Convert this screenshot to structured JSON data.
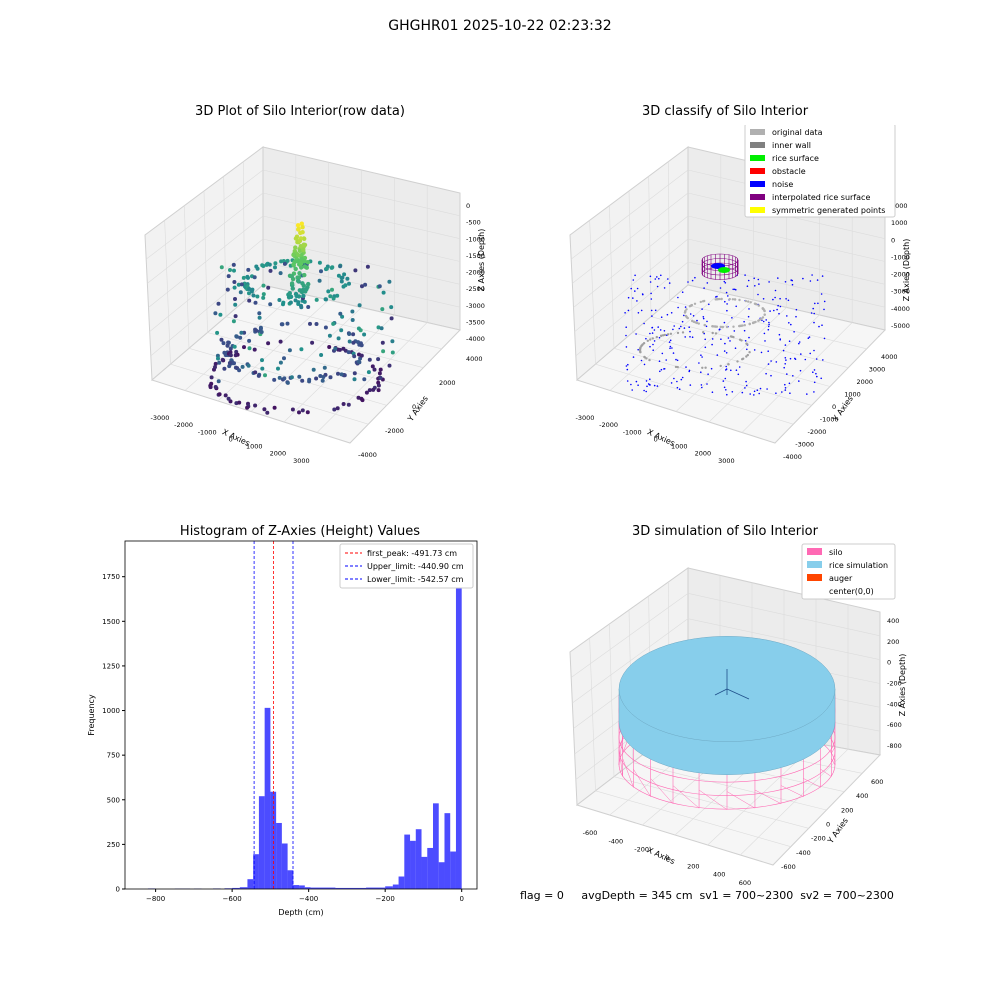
{
  "figure": {
    "suptitle": "GHGHR01 2025-10-22 02:23:32",
    "status_text": "flag = 0     avgDepth = 345 cm  sv1 = 700~2300  sv2 = 700~2300"
  },
  "panels": {
    "raw": {
      "title": "3D Plot of Silo Interior(row data)",
      "xlabel": "X Axies",
      "ylabel": "Y Axies",
      "zlabel": "Z Axies (Depth)",
      "xticks": [
        "-3000",
        "-2000",
        "-1000",
        "0",
        "1000",
        "2000",
        "3000",
        "4000"
      ],
      "yticks": [
        "-4000",
        "-2000",
        "0",
        "2000",
        "4000"
      ],
      "zticks": [
        "0",
        "-500",
        "-1000",
        "-1500",
        "-2000",
        "-2500",
        "-3000",
        "-3500",
        "-4000"
      ]
    },
    "classify": {
      "title": "3D classify of Silo Interior",
      "xlabel": "X Axies",
      "ylabel": "Y Axies",
      "zlabel": "Z Axies (Depth)",
      "xticks": [
        "-3000",
        "-2000",
        "-1000",
        "0",
        "1000",
        "2000",
        "3000",
        "4000"
      ],
      "yticks": [
        "-4000",
        "-3000",
        "-2000",
        "-1000",
        "0",
        "1000",
        "2000",
        "3000",
        "4000"
      ],
      "zticks": [
        "2000",
        "1000",
        "0",
        "-1000",
        "-2000",
        "-3000",
        "-4000",
        "-5000"
      ],
      "legend": [
        {
          "label": "original data",
          "color": "#b0b0b0"
        },
        {
          "label": "inner wall",
          "color": "#808080"
        },
        {
          "label": "rice surface",
          "color": "#00ee00"
        },
        {
          "label": "obstacle",
          "color": "#ff0000"
        },
        {
          "label": "noise",
          "color": "#0000ff"
        },
        {
          "label": "interpolated rice surface",
          "color": "#800080"
        },
        {
          "label": "symmetric generated points",
          "color": "#ffff00"
        }
      ]
    },
    "simulation": {
      "title": "3D simulation of Silo Interior",
      "xlabel": "X Axies",
      "ylabel": "Y Axies",
      "zlabel": "Z Axies (Depth)",
      "xticks": [
        "-600",
        "-400",
        "-200",
        "0",
        "200",
        "400",
        "600"
      ],
      "yticks": [
        "-600",
        "-400",
        "-200",
        "0",
        "200",
        "400",
        "600"
      ],
      "zticks": [
        "400",
        "200",
        "0",
        "-200",
        "-400",
        "-600",
        "-800"
      ],
      "legend": [
        {
          "label": "silo",
          "color": "#ff69b4"
        },
        {
          "label": "rice simulation",
          "color": "#87ceeb"
        },
        {
          "label": "auger",
          "color": "#ff4500"
        },
        {
          "label": "center(0,0)",
          "color": "#ffffff"
        }
      ]
    }
  },
  "chart_data": {
    "type": "bar",
    "title": "Histogram of Z-Axies (Height) Values",
    "xlabel": "Depth (cm)",
    "ylabel": "Frequency",
    "xlim": [
      -880,
      40
    ],
    "ylim": [
      0,
      1950
    ],
    "xticks": [
      -800,
      -600,
      -400,
      -200,
      0
    ],
    "yticks": [
      0,
      250,
      500,
      750,
      1000,
      1250,
      1500,
      1750
    ],
    "bar_color": "#0000ff",
    "bins": [
      [
        -820,
        -800,
        3
      ],
      [
        -750,
        -730,
        2
      ],
      [
        -730,
        -710,
        2
      ],
      [
        -700,
        -680,
        2
      ],
      [
        -650,
        -630,
        3
      ],
      [
        -620,
        -600,
        4
      ],
      [
        -600,
        -580,
        6
      ],
      [
        -580,
        -560,
        10
      ],
      [
        -560,
        -545,
        55
      ],
      [
        -545,
        -530,
        195
      ],
      [
        -530,
        -515,
        520
      ],
      [
        -515,
        -500,
        1015
      ],
      [
        -500,
        -485,
        545
      ],
      [
        -485,
        -470,
        370
      ],
      [
        -470,
        -455,
        255
      ],
      [
        -455,
        -440,
        105
      ],
      [
        -440,
        -425,
        22
      ],
      [
        -425,
        -410,
        20
      ],
      [
        -410,
        -395,
        10
      ],
      [
        -395,
        -330,
        8
      ],
      [
        -330,
        -250,
        6
      ],
      [
        -250,
        -200,
        8
      ],
      [
        -200,
        -180,
        15
      ],
      [
        -180,
        -165,
        25
      ],
      [
        -165,
        -150,
        70
      ],
      [
        -150,
        -135,
        305
      ],
      [
        -135,
        -120,
        270
      ],
      [
        -120,
        -105,
        335
      ],
      [
        -105,
        -90,
        180
      ],
      [
        -90,
        -75,
        230
      ],
      [
        -75,
        -60,
        480
      ],
      [
        -60,
        -45,
        150
      ],
      [
        -45,
        -30,
        425
      ],
      [
        -30,
        -15,
        210
      ],
      [
        -15,
        0,
        1860
      ]
    ],
    "lines": [
      {
        "label": "first_peak: -491.73 cm",
        "x": -491.73,
        "color": "#ff0000"
      },
      {
        "label": "Upper_limit: -440.90 cm",
        "x": -440.9,
        "color": "#0000ff"
      },
      {
        "label": "Lower_limit: -542.57 cm",
        "x": -542.57,
        "color": "#0000ff"
      }
    ],
    "grid": false,
    "legend_position": "top-right"
  }
}
